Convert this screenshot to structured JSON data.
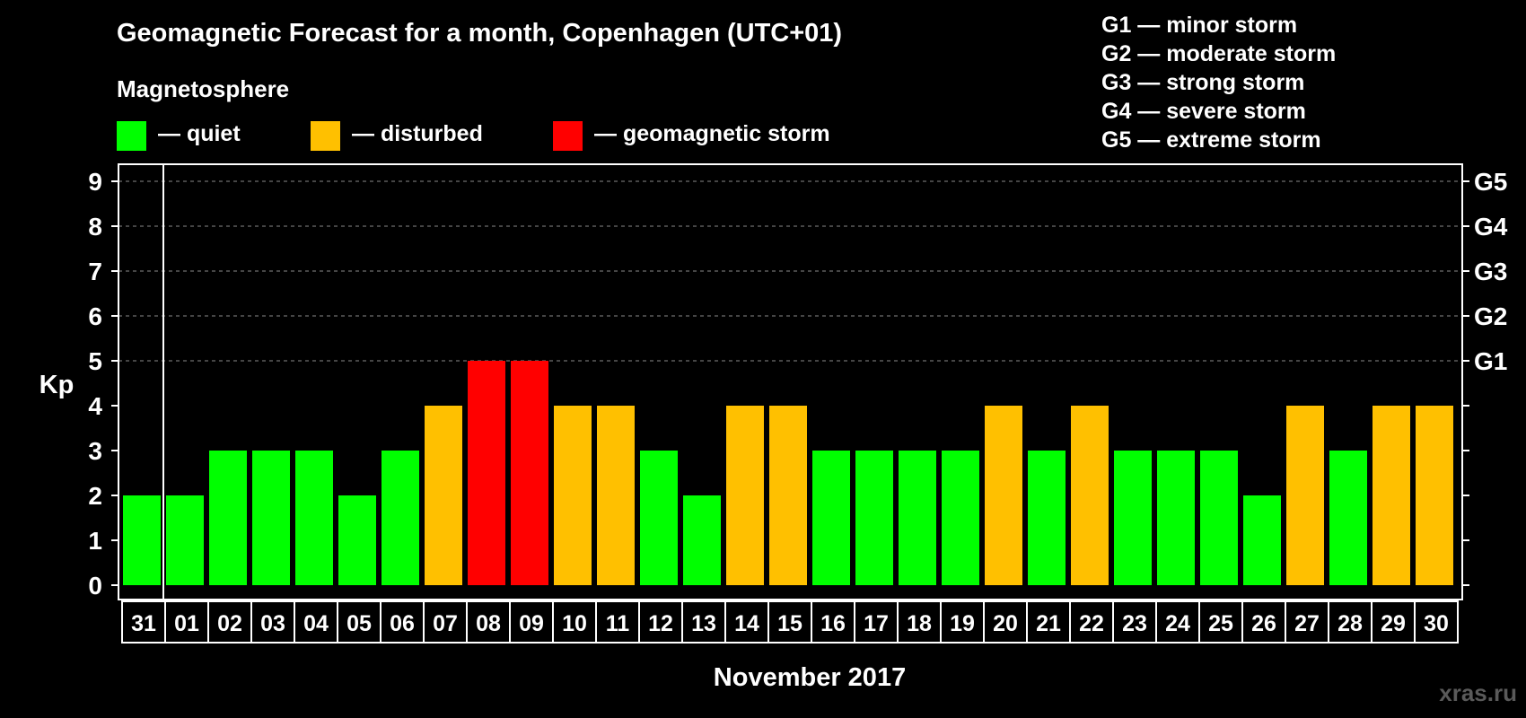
{
  "header": {
    "title": "Geomagnetic Forecast for a month, Copenhagen (UTC+01)",
    "subtitle": "Magnetosphere"
  },
  "legend": [
    {
      "label": "— quiet",
      "color": "#00ff00"
    },
    {
      "label": "— disturbed",
      "color": "#ffc000"
    },
    {
      "label": "— geomagnetic storm",
      "color": "#ff0000"
    }
  ],
  "storm_scale": [
    "G1 — minor storm",
    "G2 — moderate storm",
    "G3 — strong storm",
    "G4 — severe storm",
    "G5 — extreme storm"
  ],
  "watermark": "xras.ru",
  "chart_data": {
    "type": "bar",
    "xlabel": "November 2017",
    "ylabel": "Kp",
    "ylim": [
      0,
      9
    ],
    "yticks": [
      0,
      1,
      2,
      3,
      4,
      5,
      6,
      7,
      8,
      9
    ],
    "right_ticks": [
      {
        "value": 5,
        "label": "G1"
      },
      {
        "value": 6,
        "label": "G2"
      },
      {
        "value": 7,
        "label": "G3"
      },
      {
        "value": 8,
        "label": "G4"
      },
      {
        "value": 9,
        "label": "G5"
      }
    ],
    "grid": "dashed horizontal at Kp 5-9",
    "categories": [
      "31",
      "01",
      "02",
      "03",
      "04",
      "05",
      "06",
      "07",
      "08",
      "09",
      "10",
      "11",
      "12",
      "13",
      "14",
      "15",
      "16",
      "17",
      "18",
      "19",
      "20",
      "21",
      "22",
      "23",
      "24",
      "25",
      "26",
      "27",
      "28",
      "29",
      "30"
    ],
    "values": [
      2,
      2,
      3,
      3,
      3,
      2,
      3,
      4,
      5,
      5,
      4,
      4,
      3,
      2,
      4,
      4,
      3,
      3,
      3,
      3,
      4,
      3,
      4,
      3,
      3,
      3,
      2,
      4,
      3,
      4,
      4
    ],
    "colors": {
      "quiet": "#00ff00",
      "disturbed": "#ffc000",
      "storm": "#ff0000"
    }
  }
}
